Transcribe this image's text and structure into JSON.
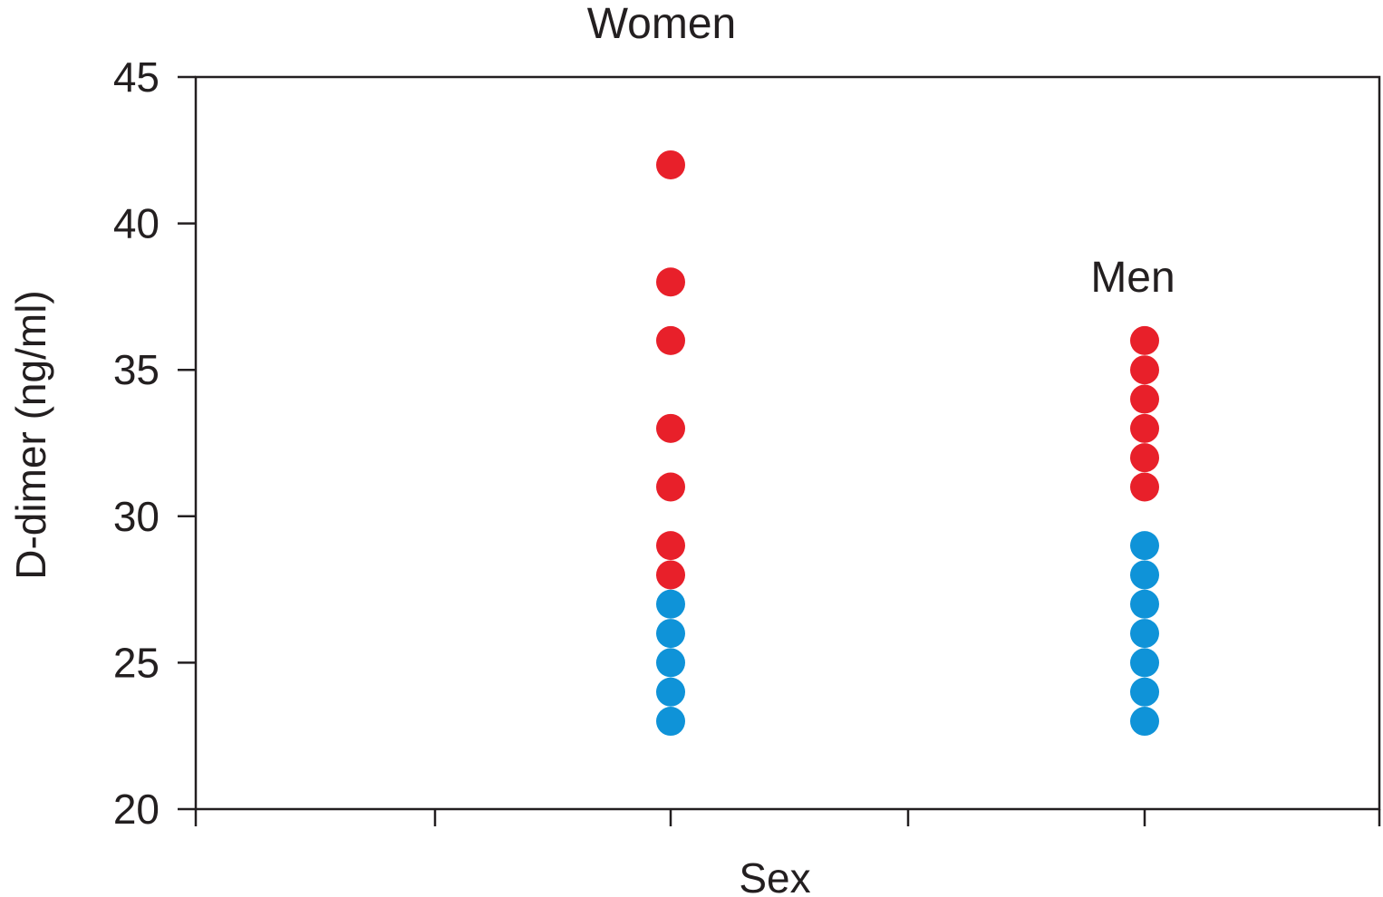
{
  "chart_data": {
    "type": "scatter",
    "title": "",
    "xlabel": "Sex",
    "ylabel": "D-dimer (ng/ml)",
    "ylim": [
      20,
      45
    ],
    "yticks": [
      20,
      25,
      30,
      35,
      40,
      45
    ],
    "grid": false,
    "legend": "none",
    "colors": {
      "high": "#e8202a",
      "low": "#0f93d8"
    },
    "annotations": [
      {
        "text": "Women",
        "group": "Women"
      },
      {
        "text": "Men",
        "group": "Men"
      }
    ],
    "groups": [
      {
        "name": "Women",
        "points": [
          {
            "y": 42,
            "level": "high"
          },
          {
            "y": 38,
            "level": "high"
          },
          {
            "y": 36,
            "level": "high"
          },
          {
            "y": 33,
            "level": "high"
          },
          {
            "y": 31,
            "level": "high"
          },
          {
            "y": 29,
            "level": "high"
          },
          {
            "y": 28,
            "level": "high"
          },
          {
            "y": 27,
            "level": "low"
          },
          {
            "y": 26,
            "level": "low"
          },
          {
            "y": 25,
            "level": "low"
          },
          {
            "y": 24,
            "level": "low"
          },
          {
            "y": 23,
            "level": "low"
          }
        ]
      },
      {
        "name": "Men",
        "points": [
          {
            "y": 36,
            "level": "high"
          },
          {
            "y": 35,
            "level": "high"
          },
          {
            "y": 34,
            "level": "high"
          },
          {
            "y": 33,
            "level": "high"
          },
          {
            "y": 32,
            "level": "high"
          },
          {
            "y": 31,
            "level": "high"
          },
          {
            "y": 29,
            "level": "low"
          },
          {
            "y": 28,
            "level": "low"
          },
          {
            "y": 27,
            "level": "low"
          },
          {
            "y": 26,
            "level": "low"
          },
          {
            "y": 25,
            "level": "low"
          },
          {
            "y": 24,
            "level": "low"
          },
          {
            "y": 23,
            "level": "low"
          }
        ]
      }
    ]
  }
}
